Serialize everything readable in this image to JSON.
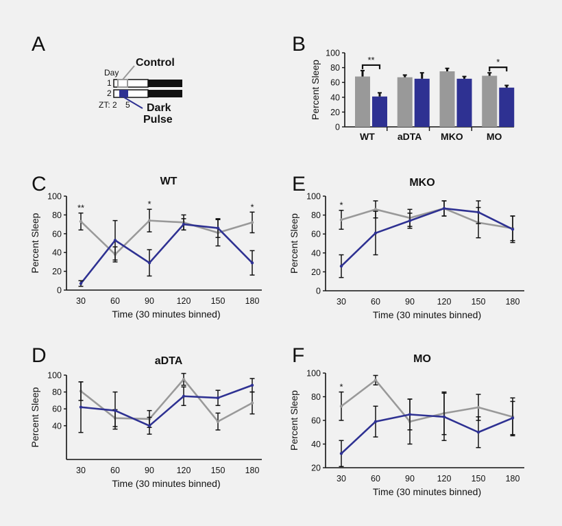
{
  "colors": {
    "control": "#999999",
    "dark_pulse": "#2e3192",
    "axis": "#111111",
    "background": "#f1f1f1"
  },
  "panel_a": {
    "letter": "A",
    "day_label": "Day",
    "rows": [
      "1",
      "2"
    ],
    "zt_label": "ZT: 2",
    "zt_end": "5",
    "control_label": "Control",
    "dark_label_line1": "Dark",
    "dark_label_line2": "Pulse"
  },
  "chart_data": [
    {
      "panel": "B",
      "type": "bar",
      "ylabel": "Percent Sleep",
      "ylim": [
        0,
        100
      ],
      "yticks": [
        0,
        20,
        40,
        60,
        80,
        100
      ],
      "groups": [
        "WT",
        "aDTA",
        "MKO",
        "MO"
      ],
      "series": [
        {
          "role": "control",
          "values": [
            68,
            67,
            75,
            69
          ],
          "errors": [
            8,
            3,
            4,
            4
          ]
        },
        {
          "role": "dark_pulse",
          "values": [
            41,
            65,
            65,
            53
          ],
          "errors": [
            5,
            8,
            3,
            3
          ]
        }
      ],
      "significance": [
        {
          "group": "WT",
          "label": "**"
        },
        {
          "group": "MO",
          "label": "*"
        }
      ]
    },
    {
      "panel": "C",
      "type": "line",
      "title": "WT",
      "xlabel": "Time (30 minutes binned)",
      "ylabel": "Percent Sleep",
      "x": [
        30,
        60,
        90,
        120,
        150,
        180
      ],
      "ylim": [
        0,
        100
      ],
      "yticks": [
        0,
        20,
        40,
        60,
        80,
        100
      ],
      "series": [
        {
          "role": "control",
          "values": [
            73,
            38,
            74,
            72,
            61,
            72
          ],
          "errors": [
            9,
            8,
            12,
            8,
            14,
            11
          ]
        },
        {
          "role": "dark_pulse",
          "values": [
            7,
            53,
            29,
            70,
            66,
            29
          ],
          "errors": [
            3,
            21,
            14,
            6,
            10,
            13
          ]
        }
      ],
      "stars": [
        {
          "x": 30,
          "label": "**"
        },
        {
          "x": 90,
          "label": "*"
        },
        {
          "x": 180,
          "label": "*"
        }
      ]
    },
    {
      "panel": "E",
      "type": "line",
      "title": "MKO",
      "xlabel": "Time (30 minutes binned)",
      "ylabel": "Percent Sleep",
      "x": [
        30,
        60,
        90,
        120,
        150,
        180
      ],
      "ylim": [
        0,
        100
      ],
      "yticks": [
        0,
        20,
        40,
        60,
        80,
        100
      ],
      "series": [
        {
          "role": "control",
          "values": [
            75,
            86,
            77,
            87,
            72,
            66
          ],
          "errors": [
            10,
            9,
            9,
            8,
            16,
            13
          ]
        },
        {
          "role": "dark_pulse",
          "values": [
            26,
            61,
            74,
            87,
            83,
            65
          ],
          "errors": [
            12,
            23,
            8,
            8,
            12,
            14
          ]
        }
      ],
      "stars": [
        {
          "x": 30,
          "label": "*"
        }
      ]
    },
    {
      "panel": "D",
      "type": "line",
      "title": "aDTA",
      "xlabel": "Time (30 minutes binned)",
      "ylabel": "Percent Sleep",
      "x": [
        30,
        60,
        90,
        120,
        150,
        180
      ],
      "ylim": [
        0,
        100
      ],
      "yticks": [
        40,
        60,
        80,
        100
      ],
      "series": [
        {
          "role": "control",
          "values": [
            81,
            49,
            48,
            95,
            45,
            67
          ],
          "errors": [
            11,
            10,
            10,
            7,
            10,
            13
          ]
        },
        {
          "role": "dark_pulse",
          "values": [
            62,
            58,
            40,
            75,
            73,
            88
          ],
          "errors": [
            30,
            22,
            10,
            11,
            9,
            8
          ]
        }
      ],
      "stars": []
    },
    {
      "panel": "F",
      "type": "line",
      "title": "MO",
      "xlabel": "Time (30 minutes binned)",
      "ylabel": "Percent Sleep",
      "x": [
        30,
        60,
        90,
        120,
        150,
        180
      ],
      "ylim": [
        20,
        100
      ],
      "yticks": [
        20,
        40,
        60,
        80,
        100
      ],
      "series": [
        {
          "role": "control",
          "values": [
            72,
            94,
            59,
            66,
            71,
            63
          ],
          "errors": [
            12,
            4,
            19,
            18,
            11,
            16
          ]
        },
        {
          "role": "dark_pulse",
          "values": [
            32,
            59,
            65,
            63,
            50,
            62
          ],
          "errors": [
            11,
            13,
            13,
            20,
            13,
            14
          ]
        }
      ],
      "stars": [
        {
          "x": 30,
          "label": "*"
        }
      ]
    }
  ]
}
